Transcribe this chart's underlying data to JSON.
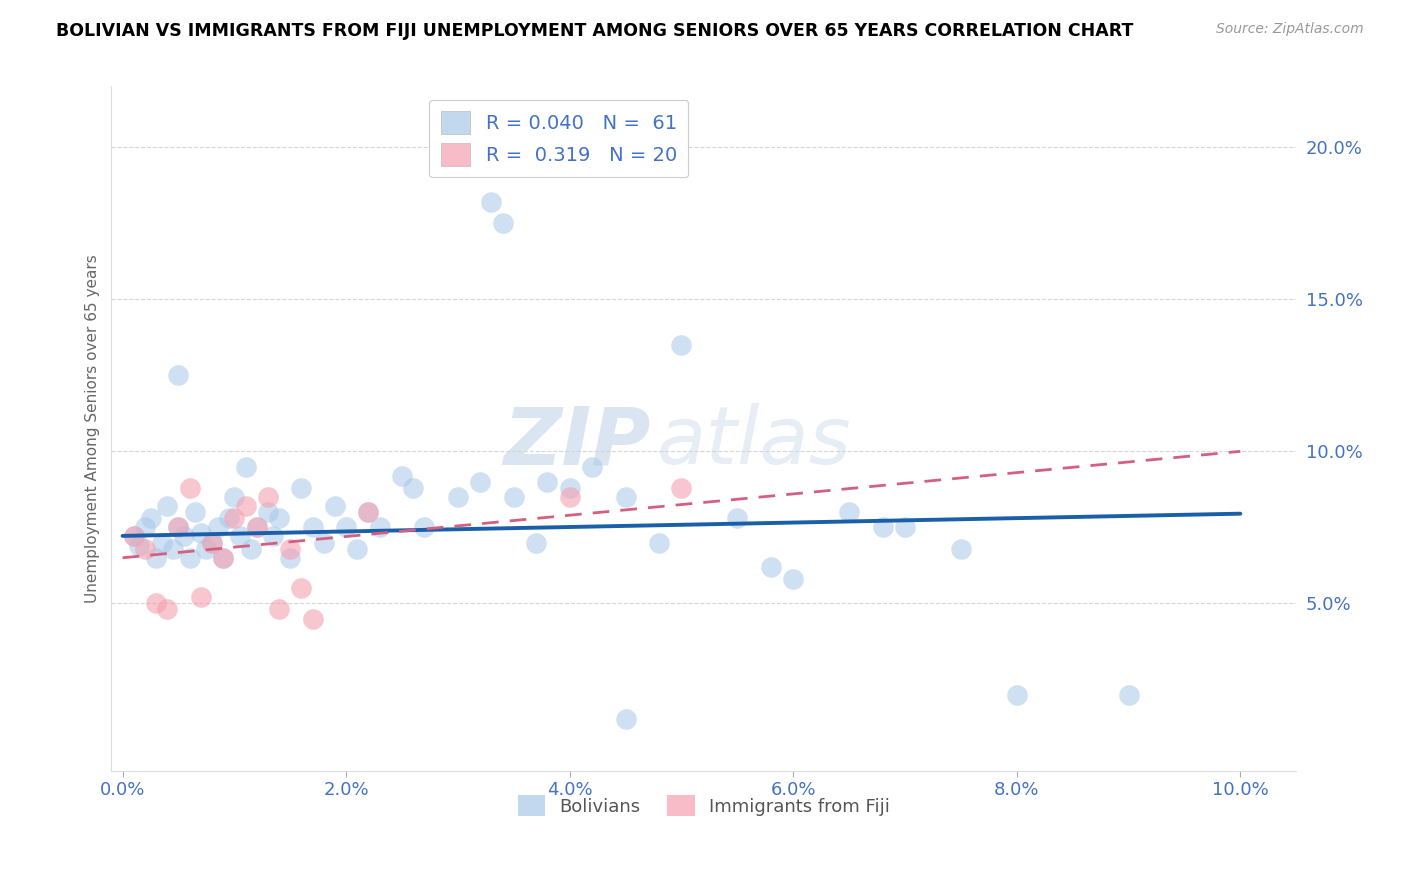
{
  "title": "BOLIVIAN VS IMMIGRANTS FROM FIJI UNEMPLOYMENT AMONG SENIORS OVER 65 YEARS CORRELATION CHART",
  "source": "Source: ZipAtlas.com",
  "xlabel_ticks": [
    "0.0%",
    "2.0%",
    "4.0%",
    "6.0%",
    "8.0%",
    "10.0%"
  ],
  "xlabel_vals": [
    0.0,
    2.0,
    4.0,
    6.0,
    8.0,
    10.0
  ],
  "ylabel": "Unemployment Among Seniors over 65 years",
  "ylabel_ticks": [
    "5.0%",
    "10.0%",
    "15.0%",
    "20.0%"
  ],
  "ylabel_vals": [
    5.0,
    10.0,
    15.0,
    20.0
  ],
  "xlim": [
    -0.1,
    10.5
  ],
  "ylim": [
    -0.5,
    22.0
  ],
  "watermark_zip": "ZIP",
  "watermark_atlas": "atlas",
  "legend_r1": "R = 0.040",
  "legend_n1": "N =  61",
  "legend_r2": "R =  0.319",
  "legend_n2": "N = 20",
  "blue_color": "#a8c8e8",
  "pink_color": "#f4a0b0",
  "blue_line_color": "#1a5fa8",
  "pink_line_color": "#d46080",
  "blue_scatter": [
    [
      0.1,
      7.2
    ],
    [
      0.15,
      6.9
    ],
    [
      0.2,
      7.5
    ],
    [
      0.25,
      7.8
    ],
    [
      0.3,
      6.5
    ],
    [
      0.35,
      7.0
    ],
    [
      0.4,
      8.2
    ],
    [
      0.45,
      6.8
    ],
    [
      0.5,
      7.5
    ],
    [
      0.55,
      7.2
    ],
    [
      0.6,
      6.5
    ],
    [
      0.65,
      8.0
    ],
    [
      0.7,
      7.3
    ],
    [
      0.75,
      6.8
    ],
    [
      0.8,
      7.0
    ],
    [
      0.85,
      7.5
    ],
    [
      0.9,
      6.5
    ],
    [
      0.95,
      7.8
    ],
    [
      1.0,
      8.5
    ],
    [
      1.05,
      7.2
    ],
    [
      1.1,
      9.5
    ],
    [
      1.15,
      6.8
    ],
    [
      1.2,
      7.5
    ],
    [
      1.3,
      8.0
    ],
    [
      1.35,
      7.2
    ],
    [
      1.4,
      7.8
    ],
    [
      1.5,
      6.5
    ],
    [
      1.6,
      8.8
    ],
    [
      1.7,
      7.5
    ],
    [
      1.8,
      7.0
    ],
    [
      1.9,
      8.2
    ],
    [
      2.0,
      7.5
    ],
    [
      2.1,
      6.8
    ],
    [
      2.2,
      8.0
    ],
    [
      2.3,
      7.5
    ],
    [
      2.5,
      9.2
    ],
    [
      2.6,
      8.8
    ],
    [
      2.7,
      7.5
    ],
    [
      3.0,
      8.5
    ],
    [
      3.2,
      9.0
    ],
    [
      3.3,
      18.2
    ],
    [
      3.4,
      17.5
    ],
    [
      3.5,
      8.5
    ],
    [
      3.7,
      7.0
    ],
    [
      3.8,
      9.0
    ],
    [
      4.0,
      8.8
    ],
    [
      4.2,
      9.5
    ],
    [
      4.5,
      8.5
    ],
    [
      4.8,
      7.0
    ],
    [
      5.0,
      13.5
    ],
    [
      5.5,
      7.8
    ],
    [
      5.8,
      6.2
    ],
    [
      6.0,
      5.8
    ],
    [
      6.5,
      8.0
    ],
    [
      6.8,
      7.5
    ],
    [
      7.0,
      7.5
    ],
    [
      7.5,
      6.8
    ],
    [
      8.0,
      2.0
    ],
    [
      9.0,
      2.0
    ],
    [
      4.5,
      1.2
    ],
    [
      0.5,
      12.5
    ]
  ],
  "pink_scatter": [
    [
      0.1,
      7.2
    ],
    [
      0.2,
      6.8
    ],
    [
      0.3,
      5.0
    ],
    [
      0.4,
      4.8
    ],
    [
      0.5,
      7.5
    ],
    [
      0.6,
      8.8
    ],
    [
      0.7,
      5.2
    ],
    [
      0.8,
      7.0
    ],
    [
      0.9,
      6.5
    ],
    [
      1.0,
      7.8
    ],
    [
      1.1,
      8.2
    ],
    [
      1.2,
      7.5
    ],
    [
      1.3,
      8.5
    ],
    [
      1.4,
      4.8
    ],
    [
      1.5,
      6.8
    ],
    [
      1.6,
      5.5
    ],
    [
      1.7,
      4.5
    ],
    [
      2.2,
      8.0
    ],
    [
      4.0,
      8.5
    ],
    [
      5.0,
      8.8
    ]
  ],
  "blue_trendline": [
    [
      0.0,
      7.22
    ],
    [
      10.0,
      7.95
    ]
  ],
  "pink_trendline": [
    [
      0.0,
      6.5
    ],
    [
      10.0,
      10.0
    ]
  ]
}
